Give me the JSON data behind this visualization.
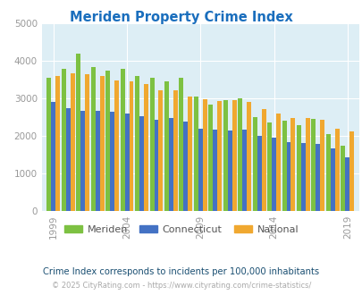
{
  "title": "Meriden Property Crime Index",
  "title_color": "#1a6ebd",
  "years": [
    1999,
    2000,
    2001,
    2002,
    2003,
    2004,
    2005,
    2006,
    2007,
    2008,
    2009,
    2010,
    2011,
    2012,
    2013,
    2014,
    2015,
    2016,
    2017,
    2018,
    2019,
    2020
  ],
  "meriden": [
    3550,
    3800,
    4200,
    3850,
    3750,
    3800,
    3600,
    3550,
    3450,
    3550,
    3050,
    2850,
    2950,
    3000,
    2500,
    2370,
    2400,
    2300,
    2450,
    2050,
    1730,
    0
  ],
  "connecticut": [
    2900,
    2750,
    2670,
    2670,
    2650,
    2590,
    2530,
    2440,
    2470,
    2380,
    2190,
    2160,
    2150,
    2160,
    2000,
    1960,
    1830,
    1820,
    1790,
    1670,
    1440,
    0
  ],
  "national": [
    3600,
    3670,
    3640,
    3600,
    3480,
    3450,
    3380,
    3230,
    3210,
    3050,
    2970,
    2940,
    2950,
    2900,
    2730,
    2610,
    2480,
    2490,
    2440,
    2200,
    2120,
    0
  ],
  "meriden_color": "#7dc142",
  "connecticut_color": "#4472c4",
  "national_color": "#f0a830",
  "bg_color": "#ddeef5",
  "ylim": [
    0,
    5000
  ],
  "yticks": [
    0,
    1000,
    2000,
    3000,
    4000,
    5000
  ],
  "xtick_labels": [
    "1999",
    "2004",
    "2009",
    "2014",
    "2019"
  ],
  "xtick_positions": [
    1999,
    2004,
    2009,
    2014,
    2019
  ],
  "subtitle": "Crime Index corresponds to incidents per 100,000 inhabitants",
  "footer": "© 2025 CityRating.com - https://www.cityrating.com/crime-statistics/",
  "subtitle_color": "#1a4f72",
  "footer_color": "#aaaaaa",
  "legend_labels": [
    "Meriden",
    "Connecticut",
    "National"
  ]
}
